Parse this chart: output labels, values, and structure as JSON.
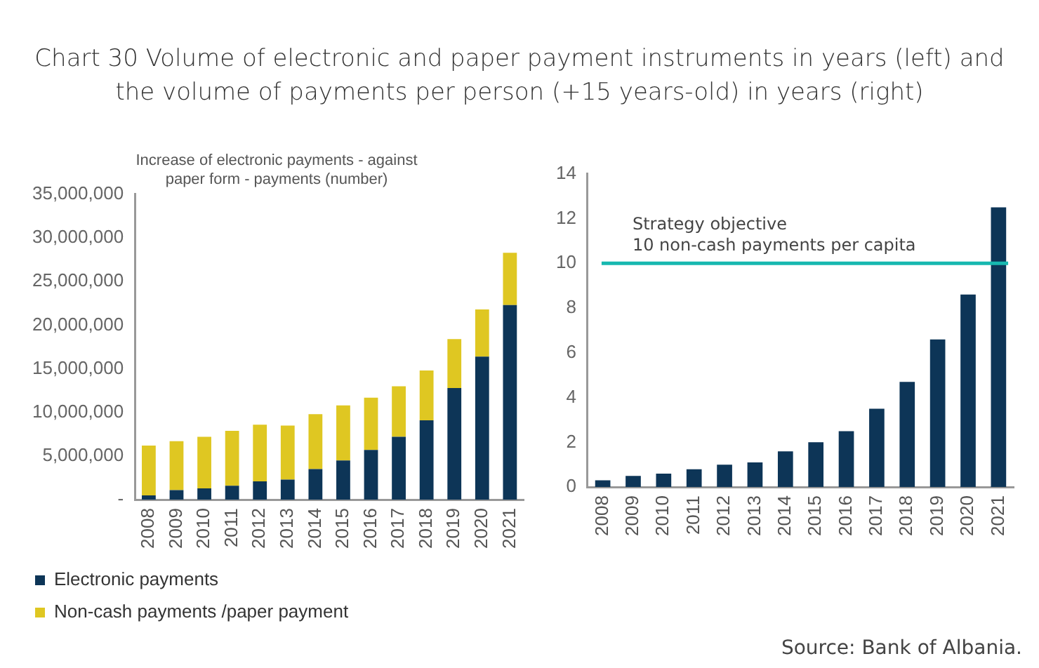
{
  "chart_data": [
    {
      "type": "bar",
      "title": "Chart 30 Volume of electronic and paper payment instruments in years (left) and the volume of payments per person (+15 years-old) in years (right)",
      "subtitle": "Increase of electronic payments - against paper form - payments (number)",
      "categories": [
        "2008",
        "2009",
        "2010",
        "2011",
        "2012",
        "2013",
        "2014",
        "2015",
        "2016",
        "2017",
        "2018",
        "2019",
        "2020",
        "2021"
      ],
      "stacked": true,
      "series": [
        {
          "name": "Electronic payments",
          "color": "#0d3557",
          "values": [
            500000,
            1100000,
            1300000,
            1600000,
            2100000,
            2300000,
            3500000,
            4500000,
            5700000,
            7200000,
            9100000,
            12800000,
            16400000,
            22300000
          ]
        },
        {
          "name": "Non-cash payments /paper payment",
          "color": "#dfc722",
          "values": [
            5700000,
            5600000,
            5900000,
            6300000,
            6500000,
            6200000,
            6300000,
            6300000,
            6000000,
            5800000,
            5700000,
            5600000,
            5400000,
            6000000
          ]
        }
      ],
      "ylim": [
        0,
        35000000
      ],
      "yticks": [
        {
          "value": 0,
          "label": "-"
        },
        {
          "value": 5000000,
          "label": "5,000,000"
        },
        {
          "value": 10000000,
          "label": "10,000,000"
        },
        {
          "value": 15000000,
          "label": "15,000,000"
        },
        {
          "value": 20000000,
          "label": "20,000,000"
        },
        {
          "value": 25000000,
          "label": "25,000,000"
        },
        {
          "value": 30000000,
          "label": "30,000,000"
        },
        {
          "value": 35000000,
          "label": "35,000,000"
        }
      ],
      "grid": false,
      "legend": "bottom"
    },
    {
      "type": "bar",
      "categories": [
        "2008",
        "2009",
        "2010",
        "2011",
        "2012",
        "2013",
        "2014",
        "2015",
        "2016",
        "2017",
        "2018",
        "2019",
        "2020",
        "2021"
      ],
      "color": "#0d3557",
      "values": [
        0.3,
        0.5,
        0.6,
        0.8,
        1.0,
        1.1,
        1.6,
        2.0,
        2.5,
        3.5,
        4.7,
        6.6,
        8.6,
        12.5
      ],
      "ylim": [
        0,
        14
      ],
      "yticks": [
        0,
        2,
        4,
        6,
        8,
        10,
        12,
        14
      ],
      "grid": false,
      "ref_lines": [
        {
          "axis": "y",
          "value": 10,
          "label": "Strategy objective\n10 non-cash payments per capita",
          "color": "#17b8b0"
        }
      ],
      "annotations": [
        "Source: Bank of Albania."
      ]
    }
  ]
}
